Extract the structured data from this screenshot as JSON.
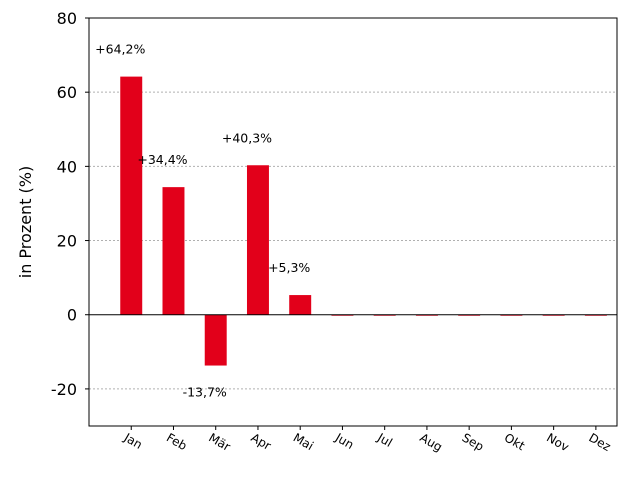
{
  "chart_data": {
    "type": "bar",
    "categories": [
      "Jan",
      "Feb",
      "Mär",
      "Apr",
      "Mai",
      "Jun",
      "Jul",
      "Aug",
      "Sep",
      "Okt",
      "Nov",
      "Dez"
    ],
    "values": [
      64.2,
      34.4,
      -13.7,
      40.3,
      5.3,
      0,
      0,
      0,
      0,
      0,
      0,
      0
    ],
    "data_labels": [
      "+64,2%",
      "+34,4%",
      "-13,7%",
      "+40,3%",
      "+5,3%",
      "",
      "",
      "",
      "",
      "",
      "",
      ""
    ],
    "title": "",
    "xlabel": "",
    "ylabel": "in Prozent (%)",
    "ylim": [
      -30,
      80
    ],
    "yticks": [
      -20,
      0,
      20,
      40,
      60,
      80
    ],
    "ytick_labels": [
      "-20",
      "0",
      "20",
      "40",
      "60",
      "80"
    ],
    "grid": "horizontal dotted",
    "bar_color": "#e2001a",
    "grid_color": "#b0b0b0",
    "zero_line": true
  }
}
